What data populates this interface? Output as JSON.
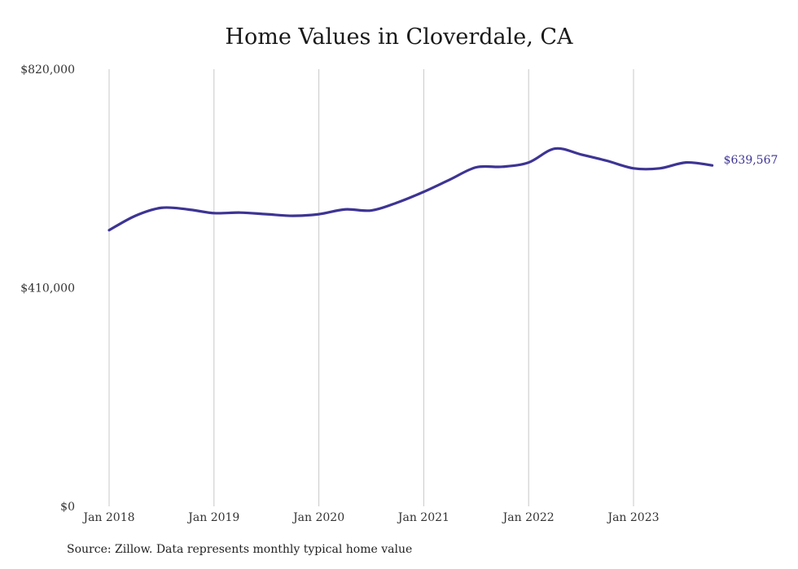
{
  "chart_data": {
    "type": "line",
    "title": "Home Values in Cloverdale, CA",
    "xlabel": "",
    "ylabel": "",
    "ylim": [
      0,
      820000
    ],
    "y_ticks": [
      "$0",
      "$410,000",
      "$820,000"
    ],
    "x_ticks": [
      "Jan 2018",
      "Jan 2019",
      "Jan 2020",
      "Jan 2021",
      "Jan 2022",
      "Jan 2023"
    ],
    "grid": "vertical",
    "colors": {
      "line": "#3d3494",
      "grid": "#c8c8c8",
      "text": "#333333"
    },
    "end_label": "$639,567",
    "series": [
      {
        "x": [
          "2018-01",
          "2018-04",
          "2018-07",
          "2018-10",
          "2019-01",
          "2019-04",
          "2019-07",
          "2019-10",
          "2020-01",
          "2020-04",
          "2020-07",
          "2020-10",
          "2021-01",
          "2021-04",
          "2021-07",
          "2021-10",
          "2022-01",
          "2022-04",
          "2022-07",
          "2022-10",
          "2023-01",
          "2023-04",
          "2023-07",
          "2023-10"
        ],
        "values": [
          518000,
          545000,
          560000,
          557000,
          550000,
          551000,
          548000,
          545000,
          548000,
          557000,
          555000,
          570000,
          590000,
          613000,
          636000,
          637000,
          645000,
          671000,
          660000,
          648000,
          634000,
          634000,
          645000,
          639567
        ]
      }
    ]
  },
  "source_note": "Source: Zillow. Data represents monthly typical home value"
}
